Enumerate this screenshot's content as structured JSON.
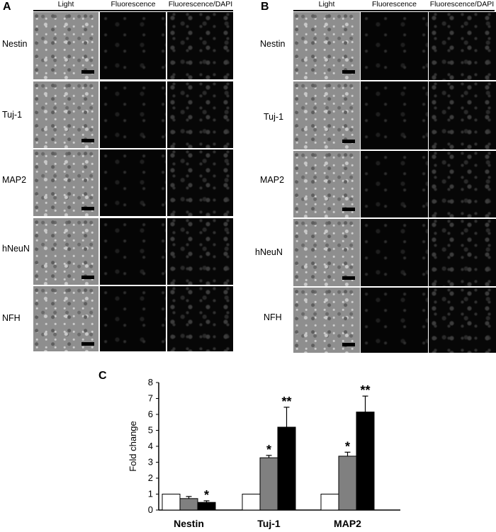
{
  "panels": {
    "A": {
      "letter": "A",
      "columns": [
        "Light",
        "Fluorescence",
        "Fluorescence/DAPI"
      ],
      "rows": [
        "Nestin",
        "Tuj-1",
        "MAP2",
        "hNeuN",
        "NFH"
      ]
    },
    "B": {
      "letter": "B",
      "columns": [
        "Light",
        "Fluorescence",
        "Fluorescence/DAPI"
      ],
      "rows": [
        "Nestin",
        "Tuj-1",
        "MAP2",
        "hNeuN",
        "NFH"
      ]
    },
    "C": {
      "letter": "C"
    }
  },
  "chart_data": {
    "type": "bar",
    "title": "",
    "xlabel": "",
    "ylabel": "Fold change",
    "ylim": [
      0,
      8
    ],
    "yticks": [
      "0",
      "1",
      "2",
      "3",
      "4",
      "5",
      "6",
      "7",
      "8"
    ],
    "categories": [
      "Nestin",
      "Tuj-1",
      "MAP2"
    ],
    "series": [
      {
        "values": [
          1.0,
          1.0,
          1.0
        ],
        "errors": [
          0,
          0,
          0
        ],
        "color": "#ffffff"
      },
      {
        "values": [
          0.72,
          3.28,
          3.38
        ],
        "errors": [
          0.13,
          0.15,
          0.25
        ],
        "color": "#808080"
      },
      {
        "values": [
          0.48,
          5.2,
          6.15
        ],
        "errors": [
          0.1,
          1.25,
          1.0
        ],
        "color": "#000000"
      }
    ],
    "annotations": [
      {
        "category": "Nestin",
        "series_index": 2,
        "text": "*"
      },
      {
        "category": "Tuj-1",
        "series_index": 1,
        "text": "*"
      },
      {
        "category": "Tuj-1",
        "series_index": 2,
        "text": "**"
      },
      {
        "category": "MAP2",
        "series_index": 1,
        "text": "*"
      },
      {
        "category": "MAP2",
        "series_index": 2,
        "text": "**"
      }
    ],
    "grid": false,
    "legend": "none"
  }
}
